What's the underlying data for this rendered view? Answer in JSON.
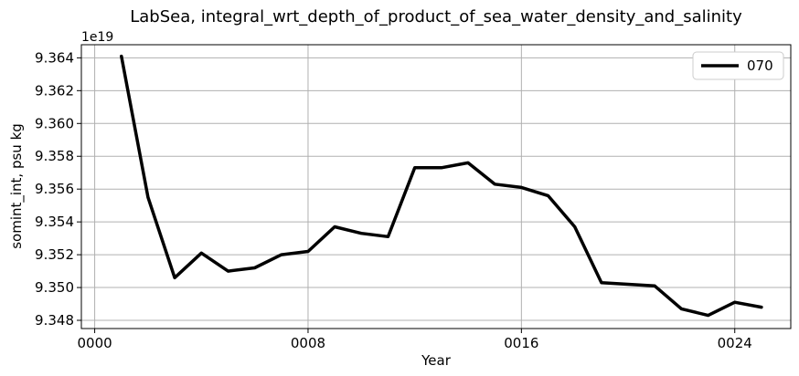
{
  "chart_data": {
    "type": "line",
    "title": "LabSea, integral_wrt_depth_of_product_of_sea_water_density_and_salinity",
    "xlabel": "Year",
    "ylabel": "somint_int, psu kg",
    "y_offset_label": "1e19",
    "y_scale": 1e+19,
    "xlim": [
      -0.5,
      26.1
    ],
    "ylim": [
      9.3475,
      9.3648
    ],
    "xticks": [
      0,
      8,
      16,
      24
    ],
    "xtick_labels": [
      "0000",
      "0008",
      "0016",
      "0024"
    ],
    "yticks": [
      9.348,
      9.35,
      9.352,
      9.354,
      9.356,
      9.358,
      9.36,
      9.362,
      9.364
    ],
    "ytick_labels": [
      "9.348",
      "9.350",
      "9.352",
      "9.354",
      "9.356",
      "9.358",
      "9.360",
      "9.362",
      "9.364"
    ],
    "grid": true,
    "legend_position": "top-right",
    "series": [
      {
        "name": "070",
        "color": "#000000",
        "x": [
          1,
          2,
          3,
          4,
          5,
          6,
          7,
          8,
          9,
          10,
          11,
          12,
          13,
          14,
          15,
          16,
          17,
          18,
          19,
          20,
          21,
          22,
          23,
          24,
          25
        ],
        "y": [
          9.3641,
          9.3555,
          9.3506,
          9.3521,
          9.351,
          9.3512,
          9.352,
          9.3522,
          9.3537,
          9.3533,
          9.3531,
          9.3573,
          9.3573,
          9.3576,
          9.3563,
          9.3561,
          9.3556,
          9.3537,
          9.3503,
          9.3502,
          9.3501,
          9.3487,
          9.3483,
          9.3491,
          9.3488
        ]
      }
    ]
  }
}
